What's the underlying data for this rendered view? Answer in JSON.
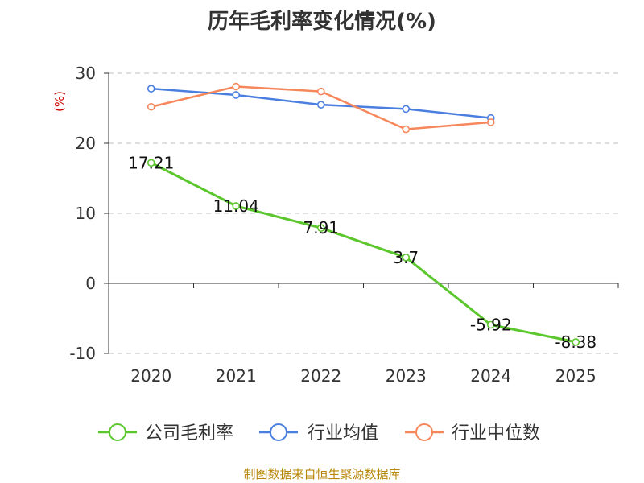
{
  "title": "历年毛利率变化情况(%)",
  "source": "制图数据来自恒生聚源数据库",
  "colors": {
    "company": "#5bc72d",
    "industry_avg": "#4a7fe0",
    "industry_median": "#f5875a",
    "ylabel": "#cc0000",
    "source": "#b8860b",
    "grid": "#cccccc",
    "axis": "#333333"
  },
  "chart_data": {
    "type": "line",
    "title": "历年毛利率变化情况(%)",
    "ylabel": "(%)",
    "xlabel": "",
    "categories": [
      "2020",
      "2021",
      "2022",
      "2023",
      "2024",
      "2025"
    ],
    "ylim": [
      -10,
      30
    ],
    "yticks": [
      -10,
      0,
      10,
      20,
      30
    ],
    "grid": true,
    "legend": "bottom",
    "series": [
      {
        "name": "公司毛利率",
        "color": "#5bc72d",
        "values": [
          17.21,
          11.04,
          7.91,
          3.7,
          -5.92,
          -8.38
        ],
        "labels": [
          "17.21",
          "11.04",
          "7.91",
          "3.7",
          "-5.92",
          "-8.38"
        ]
      },
      {
        "name": "行业均值",
        "color": "#4a7fe0",
        "values": [
          27.8,
          26.9,
          25.5,
          24.9,
          23.6,
          null
        ]
      },
      {
        "name": "行业中位数",
        "color": "#f5875a",
        "values": [
          25.2,
          28.1,
          27.4,
          22.0,
          23.0,
          null
        ]
      }
    ]
  }
}
